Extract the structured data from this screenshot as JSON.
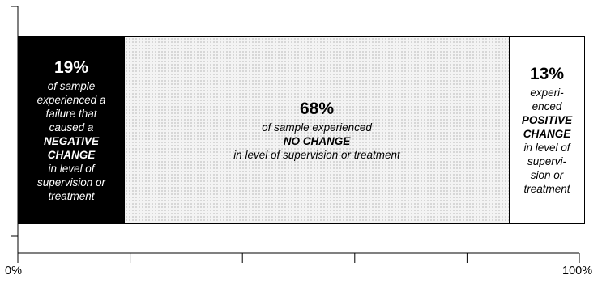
{
  "chart_data": {
    "type": "bar",
    "orientation": "horizontal-stacked",
    "xlim": [
      0,
      100
    ],
    "x_unit": "%",
    "tick_values": [
      0,
      20,
      40,
      60,
      80,
      100
    ],
    "tick_labels": [
      "0%",
      "100%"
    ],
    "series": [
      {
        "value": 19,
        "label": "19%",
        "lines": [
          "of sample",
          "experienced a",
          "failure that",
          "caused a",
          "NEGATIVE",
          "CHANGE",
          "in level of",
          "supervision or",
          "treatment"
        ],
        "bold_lines": [
          4,
          5
        ],
        "color": "#000000"
      },
      {
        "value": 68,
        "label": "68%",
        "lines": [
          "of sample experienced",
          "NO CHANGE",
          "in level of supervision or treatment"
        ],
        "bold_lines": [
          1
        ],
        "color": "#e8e8e8"
      },
      {
        "value": 13,
        "label": "13%",
        "lines": [
          "experi-",
          "enced",
          "POSITIVE",
          "CHANGE",
          "in level of",
          "supervi-",
          "sion or",
          "treatment"
        ],
        "bold_lines": [
          2,
          3
        ],
        "color": "#ffffff"
      }
    ]
  }
}
